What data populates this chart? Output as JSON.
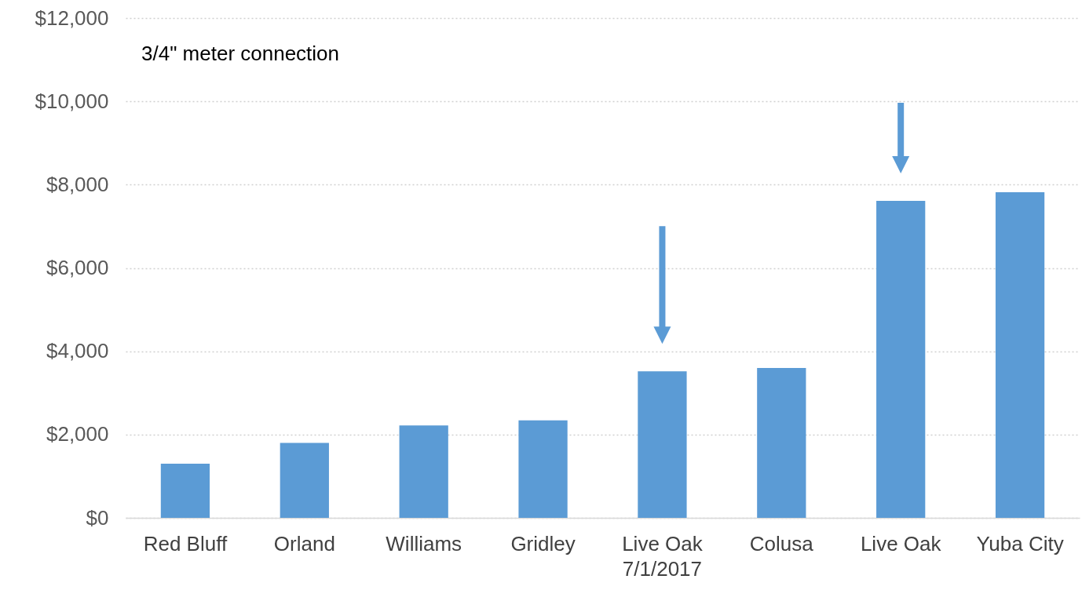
{
  "chart_data": {
    "type": "bar",
    "title": "3/4\" meter connection",
    "categories": [
      "Red Bluff",
      "Orland",
      "Williams",
      "Gridley",
      "Live Oak\n7/1/2017",
      "Colusa",
      "Live Oak",
      "Yuba City"
    ],
    "values": [
      1300,
      1800,
      2220,
      2340,
      3520,
      3600,
      7610,
      7820
    ],
    "color": "#5b9bd5",
    "ylim": [
      0,
      12000
    ],
    "yticks": [
      {
        "value": 0,
        "label": "$0"
      },
      {
        "value": 2000,
        "label": "$2,000"
      },
      {
        "value": 4000,
        "label": "$4,000"
      },
      {
        "value": 6000,
        "label": "$6,000"
      },
      {
        "value": 8000,
        "label": "$8,000"
      },
      {
        "value": 10000,
        "label": "$10,000"
      },
      {
        "value": 12000,
        "label": "$12,000"
      }
    ],
    "grid": "y"
  }
}
